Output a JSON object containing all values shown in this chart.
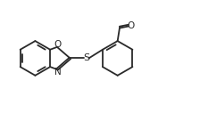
{
  "background": "#ffffff",
  "line_color": "#2a2a2a",
  "line_width": 1.3,
  "font_size": 7.5,
  "fig_width": 2.24,
  "fig_height": 1.27,
  "dpi": 100,
  "xlim": [
    -2.3,
    2.3
  ],
  "ylim": [
    -0.85,
    0.85
  ]
}
